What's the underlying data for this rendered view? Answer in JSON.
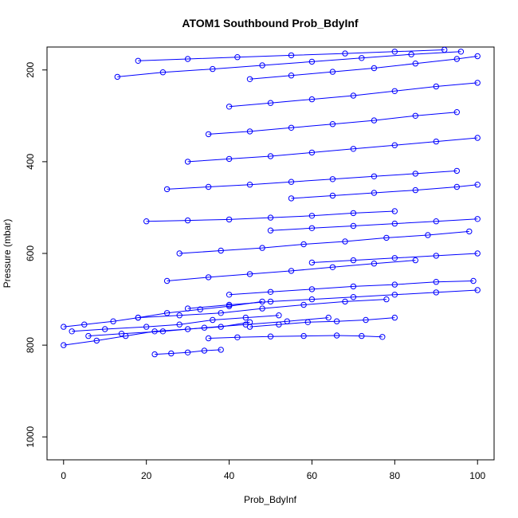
{
  "chart_data": {
    "type": "line",
    "title": "ATOM1 Southbound Prob_BdyInf",
    "xlabel": "Prob_BdyInf",
    "ylabel": "Pressure (mbar)",
    "xlim": [
      -4,
      104
    ],
    "ylim": [
      1050,
      150
    ],
    "y_reversed": true,
    "x_ticks": [
      0,
      20,
      40,
      60,
      80,
      100
    ],
    "y_ticks": [
      200,
      400,
      600,
      800,
      1000
    ],
    "grid": false,
    "legend": "none",
    "series_color": "#0000ff",
    "marker": "open-circle",
    "series": [
      {
        "x": [
          0,
          8,
          15,
          22,
          30,
          38,
          45
        ],
        "y": [
          800,
          790,
          780,
          770,
          765,
          760,
          750
        ]
      },
      {
        "x": [
          2,
          10,
          20,
          28,
          36,
          44,
          52
        ],
        "y": [
          770,
          765,
          760,
          755,
          745,
          740,
          735
        ]
      },
      {
        "x": [
          0,
          5,
          12,
          18,
          25,
          33,
          40,
          48
        ],
        "y": [
          760,
          755,
          748,
          740,
          730,
          722,
          715,
          705
        ]
      },
      {
        "x": [
          22,
          26,
          30,
          34,
          38
        ],
        "y": [
          820,
          818,
          816,
          812,
          810
        ]
      },
      {
        "x": [
          6,
          14,
          24,
          34,
          44,
          54,
          64
        ],
        "y": [
          780,
          775,
          770,
          762,
          755,
          748,
          740
        ]
      },
      {
        "x": [
          18,
          28,
          38,
          48,
          58,
          68,
          78
        ],
        "y": [
          740,
          735,
          730,
          720,
          712,
          705,
          700
        ]
      },
      {
        "x": [
          30,
          40,
          50,
          60,
          70,
          80,
          90,
          100
        ],
        "y": [
          720,
          712,
          705,
          700,
          695,
          690,
          685,
          680
        ]
      },
      {
        "x": [
          40,
          50,
          60,
          70,
          80,
          90,
          99
        ],
        "y": [
          690,
          684,
          678,
          672,
          668,
          662,
          660
        ]
      },
      {
        "x": [
          25,
          35,
          45,
          55,
          65,
          75,
          85
        ],
        "y": [
          660,
          652,
          645,
          638,
          630,
          622,
          615
        ]
      },
      {
        "x": [
          28,
          38,
          48,
          58,
          68,
          78,
          88,
          98
        ],
        "y": [
          600,
          594,
          588,
          580,
          574,
          566,
          560,
          552
        ]
      },
      {
        "x": [
          20,
          30,
          40,
          50,
          60,
          70,
          80
        ],
        "y": [
          530,
          528,
          526,
          522,
          518,
          512,
          508
        ]
      },
      {
        "x": [
          25,
          35,
          45,
          55,
          65,
          75,
          85,
          95
        ],
        "y": [
          460,
          455,
          450,
          444,
          438,
          432,
          426,
          420
        ]
      },
      {
        "x": [
          30,
          40,
          50,
          60,
          70,
          80,
          90,
          100
        ],
        "y": [
          400,
          394,
          388,
          380,
          372,
          364,
          356,
          348
        ]
      },
      {
        "x": [
          35,
          45,
          55,
          65,
          75,
          85,
          95
        ],
        "y": [
          340,
          334,
          326,
          318,
          310,
          300,
          292
        ]
      },
      {
        "x": [
          40,
          50,
          60,
          70,
          80,
          90,
          100
        ],
        "y": [
          280,
          272,
          264,
          256,
          246,
          236,
          228
        ]
      },
      {
        "x": [
          45,
          55,
          65,
          75,
          85,
          95,
          100
        ],
        "y": [
          220,
          212,
          204,
          196,
          186,
          176,
          170
        ]
      },
      {
        "x": [
          13,
          24,
          36,
          48,
          60,
          72,
          84,
          96
        ],
        "y": [
          215,
          205,
          198,
          190,
          182,
          174,
          166,
          160
        ]
      },
      {
        "x": [
          18,
          30,
          42,
          55,
          68,
          80,
          92
        ],
        "y": [
          180,
          176,
          172,
          168,
          164,
          160,
          156
        ]
      },
      {
        "x": [
          50,
          60,
          70,
          80,
          90,
          100
        ],
        "y": [
          550,
          545,
          540,
          535,
          530,
          525
        ]
      },
      {
        "x": [
          55,
          65,
          75,
          85,
          95,
          100
        ],
        "y": [
          480,
          474,
          468,
          462,
          455,
          450
        ]
      },
      {
        "x": [
          60,
          70,
          80,
          90,
          100
        ],
        "y": [
          620,
          615,
          610,
          605,
          600
        ]
      },
      {
        "x": [
          45,
          52,
          59,
          66,
          73,
          80
        ],
        "y": [
          760,
          755,
          750,
          748,
          745,
          740
        ]
      },
      {
        "x": [
          35,
          42,
          50,
          58,
          66,
          72,
          77
        ],
        "y": [
          785,
          783,
          781,
          780,
          779,
          780,
          782
        ]
      }
    ]
  }
}
